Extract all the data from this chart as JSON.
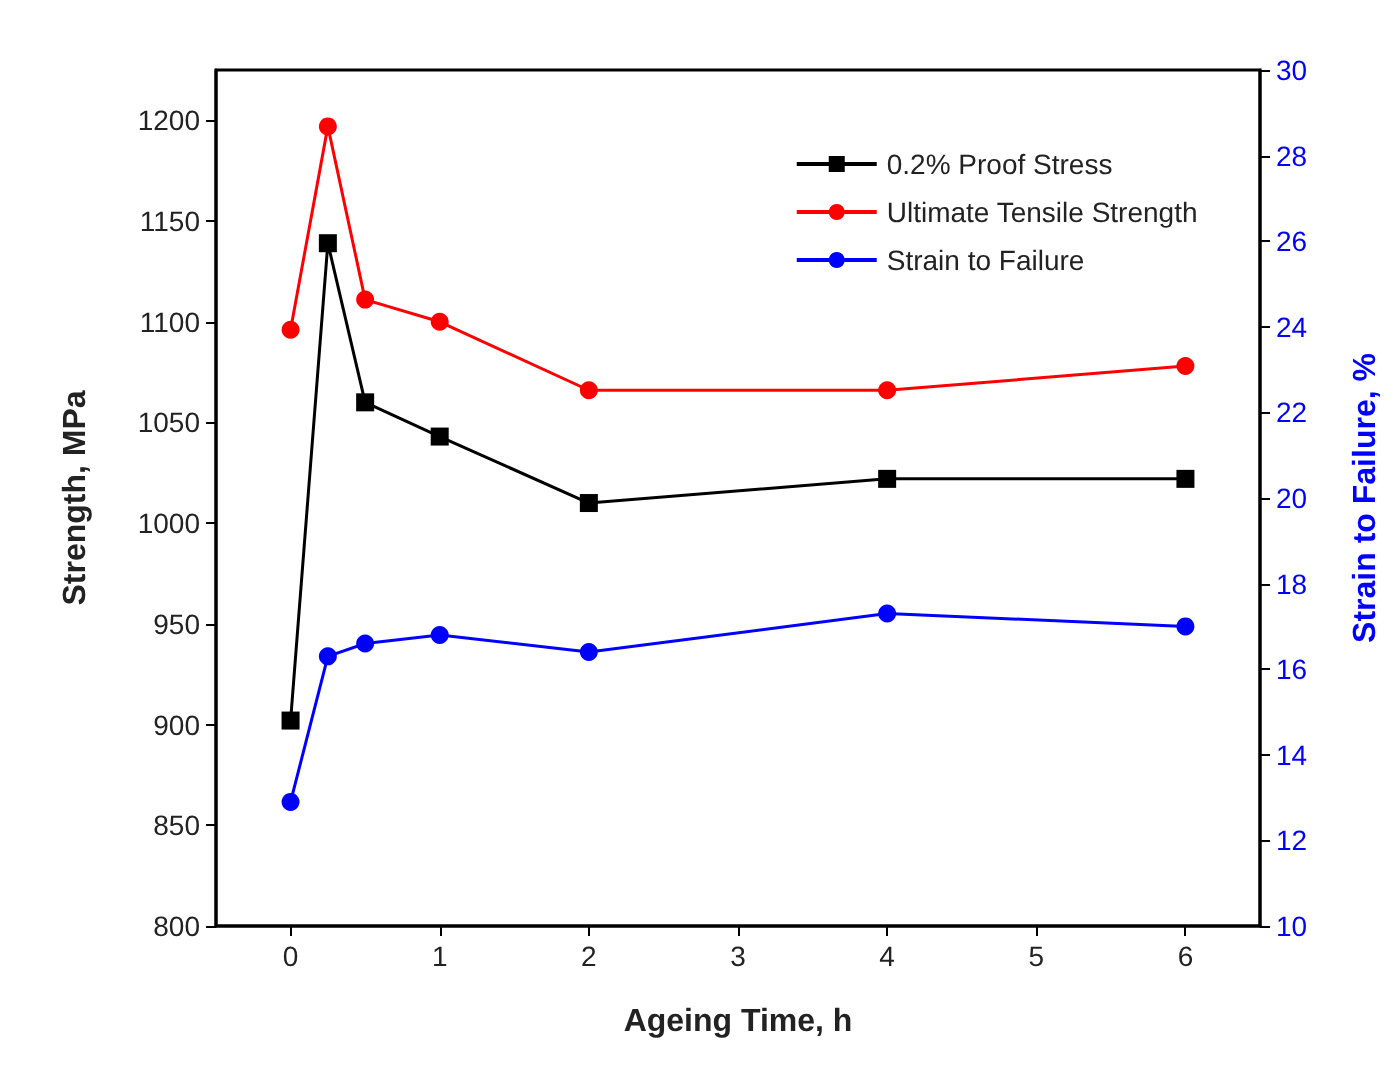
{
  "chart_data": {
    "type": "line",
    "xlabel": "Ageing Time, h",
    "ylabel": "Strength, MPa",
    "y2label": "Strain to Failure, %",
    "x": [
      0,
      0.25,
      0.5,
      1,
      2,
      4,
      6
    ],
    "xlim": [
      -0.5,
      6.5
    ],
    "xticks": [
      0,
      1,
      2,
      3,
      4,
      5,
      6
    ],
    "ylim": [
      800,
      1225
    ],
    "yticks": [
      800,
      850,
      900,
      950,
      1000,
      1050,
      1100,
      1150,
      1200
    ],
    "y2lim": [
      10,
      30
    ],
    "y2ticks": [
      10,
      12,
      14,
      16,
      18,
      20,
      22,
      24,
      26,
      28,
      30
    ],
    "series": [
      {
        "name": "0.2% Proof Stress",
        "color": "#000000",
        "marker": "square",
        "values": [
          902,
          1139,
          1060,
          1043,
          1010,
          1022,
          1022
        ]
      },
      {
        "name": "Ultimate Tensile Strength",
        "color": "#ff0000",
        "marker": "circle",
        "values": [
          1096,
          1197,
          1111,
          1100,
          1066,
          1066,
          1078
        ]
      },
      {
        "name": "Strain to Failure",
        "color": "#0000ff",
        "marker": "circle",
        "axis": "y2",
        "values": [
          12.9,
          16.3,
          16.6,
          16.8,
          16.4,
          17.3,
          17.0
        ]
      }
    ],
    "legend": "top right",
    "grid": false
  }
}
